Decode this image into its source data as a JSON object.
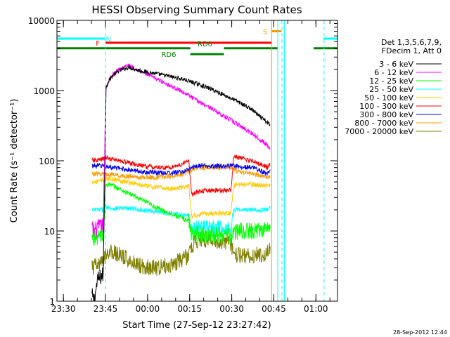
{
  "chart_data": {
    "type": "line",
    "title": "HESSI Observing Summary Count Rates",
    "xlabel": "Start Time (27-Sep-12 23:27:42)",
    "ylabel": "Count Rate (s⁻¹ detector⁻¹)",
    "footer": "28-Sep-2012 12:44",
    "x_unit": "minutes after 23:27:42",
    "xlim": [
      0,
      100
    ],
    "ylim": [
      1,
      10000
    ],
    "y_scale": "log",
    "x_ticks": [
      {
        "label": "23:30",
        "value": 2.3
      },
      {
        "label": "23:45",
        "value": 17.3
      },
      {
        "label": "00:00",
        "value": 32.3
      },
      {
        "label": "00:15",
        "value": 47.3
      },
      {
        "label": "00:30",
        "value": 62.3
      },
      {
        "label": "00:45",
        "value": 77.3
      },
      {
        "label": "01:00",
        "value": 92.3
      }
    ],
    "y_ticks": [
      {
        "label": "1",
        "value": 1
      },
      {
        "label": "10",
        "value": 10
      },
      {
        "label": "100",
        "value": 100
      },
      {
        "label": "1000",
        "value": 1000
      },
      {
        "label": "10000",
        "value": 10000
      }
    ],
    "legend_header": [
      "Det 1,3,5,6,7,9,",
      "FDecim 1, Att 0"
    ],
    "legend_position": "right",
    "series": [
      {
        "name": "3 - 6 keV",
        "color": "#000000",
        "x": [
          12.5,
          13.2,
          14.5,
          16.5,
          17.5,
          18.5,
          20,
          22,
          24,
          26,
          28,
          30,
          35,
          40,
          45,
          50,
          55,
          60,
          65,
          70,
          72,
          75,
          76
        ],
        "y": [
          1.2,
          1.0,
          2.0,
          2.4,
          1100,
          1400,
          1650,
          1900,
          2050,
          2150,
          2000,
          1900,
          1750,
          1600,
          1450,
          1250,
          1050,
          850,
          680,
          520,
          430,
          350,
          320
        ]
      },
      {
        "name": "6 - 12 keV",
        "color": "#ff00ff",
        "x": [
          12.5,
          13.2,
          14.5,
          16.5,
          17.5,
          18.5,
          20,
          22,
          24,
          26,
          28,
          30,
          35,
          40,
          45,
          50,
          55,
          60,
          65,
          70,
          72,
          75,
          76
        ],
        "y": [
          11,
          10,
          11,
          12,
          1100,
          1400,
          1700,
          2000,
          2200,
          2300,
          2050,
          1850,
          1500,
          1200,
          950,
          720,
          560,
          420,
          320,
          240,
          210,
          165,
          150
        ]
      },
      {
        "name": "12 - 25 keV",
        "color": "#00ff00",
        "x": [
          12.5,
          16.5,
          17.5,
          18.5,
          20,
          22,
          25,
          30,
          35,
          40,
          45,
          47,
          48,
          50,
          55,
          60,
          62,
          63,
          65,
          70,
          75,
          76
        ],
        "y": [
          8,
          8.5,
          45,
          46,
          44,
          40,
          35,
          28,
          22,
          18,
          15,
          14,
          9,
          9,
          9,
          8.5,
          8.5,
          9.5,
          10,
          10,
          11,
          12
        ]
      },
      {
        "name": "25 - 50 keV",
        "color": "#00ffff",
        "x": [
          12.5,
          16.5,
          17.5,
          20,
          25,
          30,
          35,
          40,
          45,
          47,
          48,
          50,
          55,
          60,
          62,
          63,
          65,
          70,
          75,
          76
        ],
        "y": [
          20,
          20,
          22,
          21,
          21,
          20,
          19,
          18,
          17,
          16.5,
          10.5,
          11,
          11,
          11,
          11,
          20,
          20,
          20,
          20,
          21
        ]
      },
      {
        "name": "50 - 100 keV",
        "color": "#ffcc00",
        "x": [
          12.5,
          16.5,
          17.5,
          20,
          25,
          30,
          35,
          40,
          45,
          47,
          48,
          50,
          55,
          60,
          62,
          63,
          65,
          70,
          75,
          76
        ],
        "y": [
          50,
          52,
          55,
          55,
          50,
          45,
          42,
          40,
          42,
          44,
          16,
          17,
          18,
          18,
          18,
          45,
          46,
          46,
          44,
          45
        ]
      },
      {
        "name": "100 - 300 keV",
        "color": "#ff0000",
        "x": [
          12.5,
          16.5,
          17.5,
          20,
          25,
          30,
          35,
          40,
          45,
          47,
          48,
          50,
          55,
          60,
          62,
          63,
          65,
          70,
          75,
          76
        ],
        "y": [
          100,
          105,
          110,
          105,
          95,
          85,
          80,
          80,
          90,
          100,
          33,
          36,
          38,
          38,
          38,
          115,
          110,
          100,
          80,
          90
        ]
      },
      {
        "name": "300 - 800 keV",
        "color": "#0000ff",
        "x": [
          12.5,
          16.5,
          17.5,
          20,
          25,
          30,
          35,
          40,
          45,
          47,
          48,
          50,
          55,
          60,
          62,
          63,
          65,
          70,
          75,
          76
        ],
        "y": [
          85,
          85,
          83,
          80,
          75,
          70,
          68,
          67,
          70,
          75,
          80,
          85,
          85,
          85,
          85,
          85,
          82,
          80,
          65,
          75
        ]
      },
      {
        "name": "800 - 7000 keV",
        "color": "#ff9900",
        "x": [
          12.5,
          16.5,
          17.5,
          20,
          25,
          30,
          35,
          40,
          45,
          47,
          48,
          50,
          55,
          60,
          62,
          63,
          65,
          70,
          75,
          76
        ],
        "y": [
          65,
          65,
          65,
          63,
          60,
          58,
          58,
          60,
          65,
          70,
          75,
          80,
          80,
          80,
          80,
          75,
          70,
          65,
          60,
          60
        ]
      },
      {
        "name": "7000 - 20000 keV",
        "color": "#808000",
        "x": [
          12.5,
          16.5,
          17.5,
          20,
          25,
          30,
          35,
          40,
          45,
          47,
          48,
          50,
          55,
          60,
          62,
          63,
          65,
          70,
          75,
          76
        ],
        "y": [
          3,
          3.5,
          5,
          5,
          4,
          3.2,
          3,
          3.2,
          4,
          4.5,
          6,
          7.5,
          7.5,
          7,
          6.5,
          5,
          4.5,
          4.5,
          4.8,
          6
        ]
      }
    ],
    "annotations": [
      {
        "label": "N",
        "color": "#00ffff",
        "level": 5500,
        "segments": [
          [
            0,
            17.3
          ],
          [
            95,
            100
          ]
        ]
      },
      {
        "label": "F",
        "color": "#ff0000",
        "level": 4800,
        "segments": [
          [
            17.3,
            76.5
          ]
        ]
      },
      {
        "label": "RD0",
        "color": "#008000",
        "level": 4000,
        "segments": [
          [
            0,
            47.5
          ],
          [
            59.5,
            78.7
          ],
          [
            91.5,
            100
          ]
        ]
      },
      {
        "label": "RD6",
        "color": "#008000",
        "level": 3300,
        "segments": [
          [
            47.5,
            59.5
          ]
        ]
      },
      {
        "label": "S",
        "color": "#ff9900",
        "level": 7000,
        "segments": [
          [
            76.5,
            80
          ]
        ]
      }
    ],
    "vertical_lines": [
      {
        "color": "#00ffff",
        "style": "dashed",
        "x": 17.3
      },
      {
        "color": "#ff9900",
        "style": "solid",
        "x": 76.5
      },
      {
        "color": "#00ffff",
        "style": "solid",
        "x": 78.7
      },
      {
        "color": "#00ffff",
        "style": "dashed",
        "x": 80.2
      },
      {
        "color": "#00ffff",
        "style": "solid",
        "x": 81.1
      },
      {
        "color": "#00ffff",
        "style": "dashed",
        "x": 95.2
      }
    ]
  }
}
